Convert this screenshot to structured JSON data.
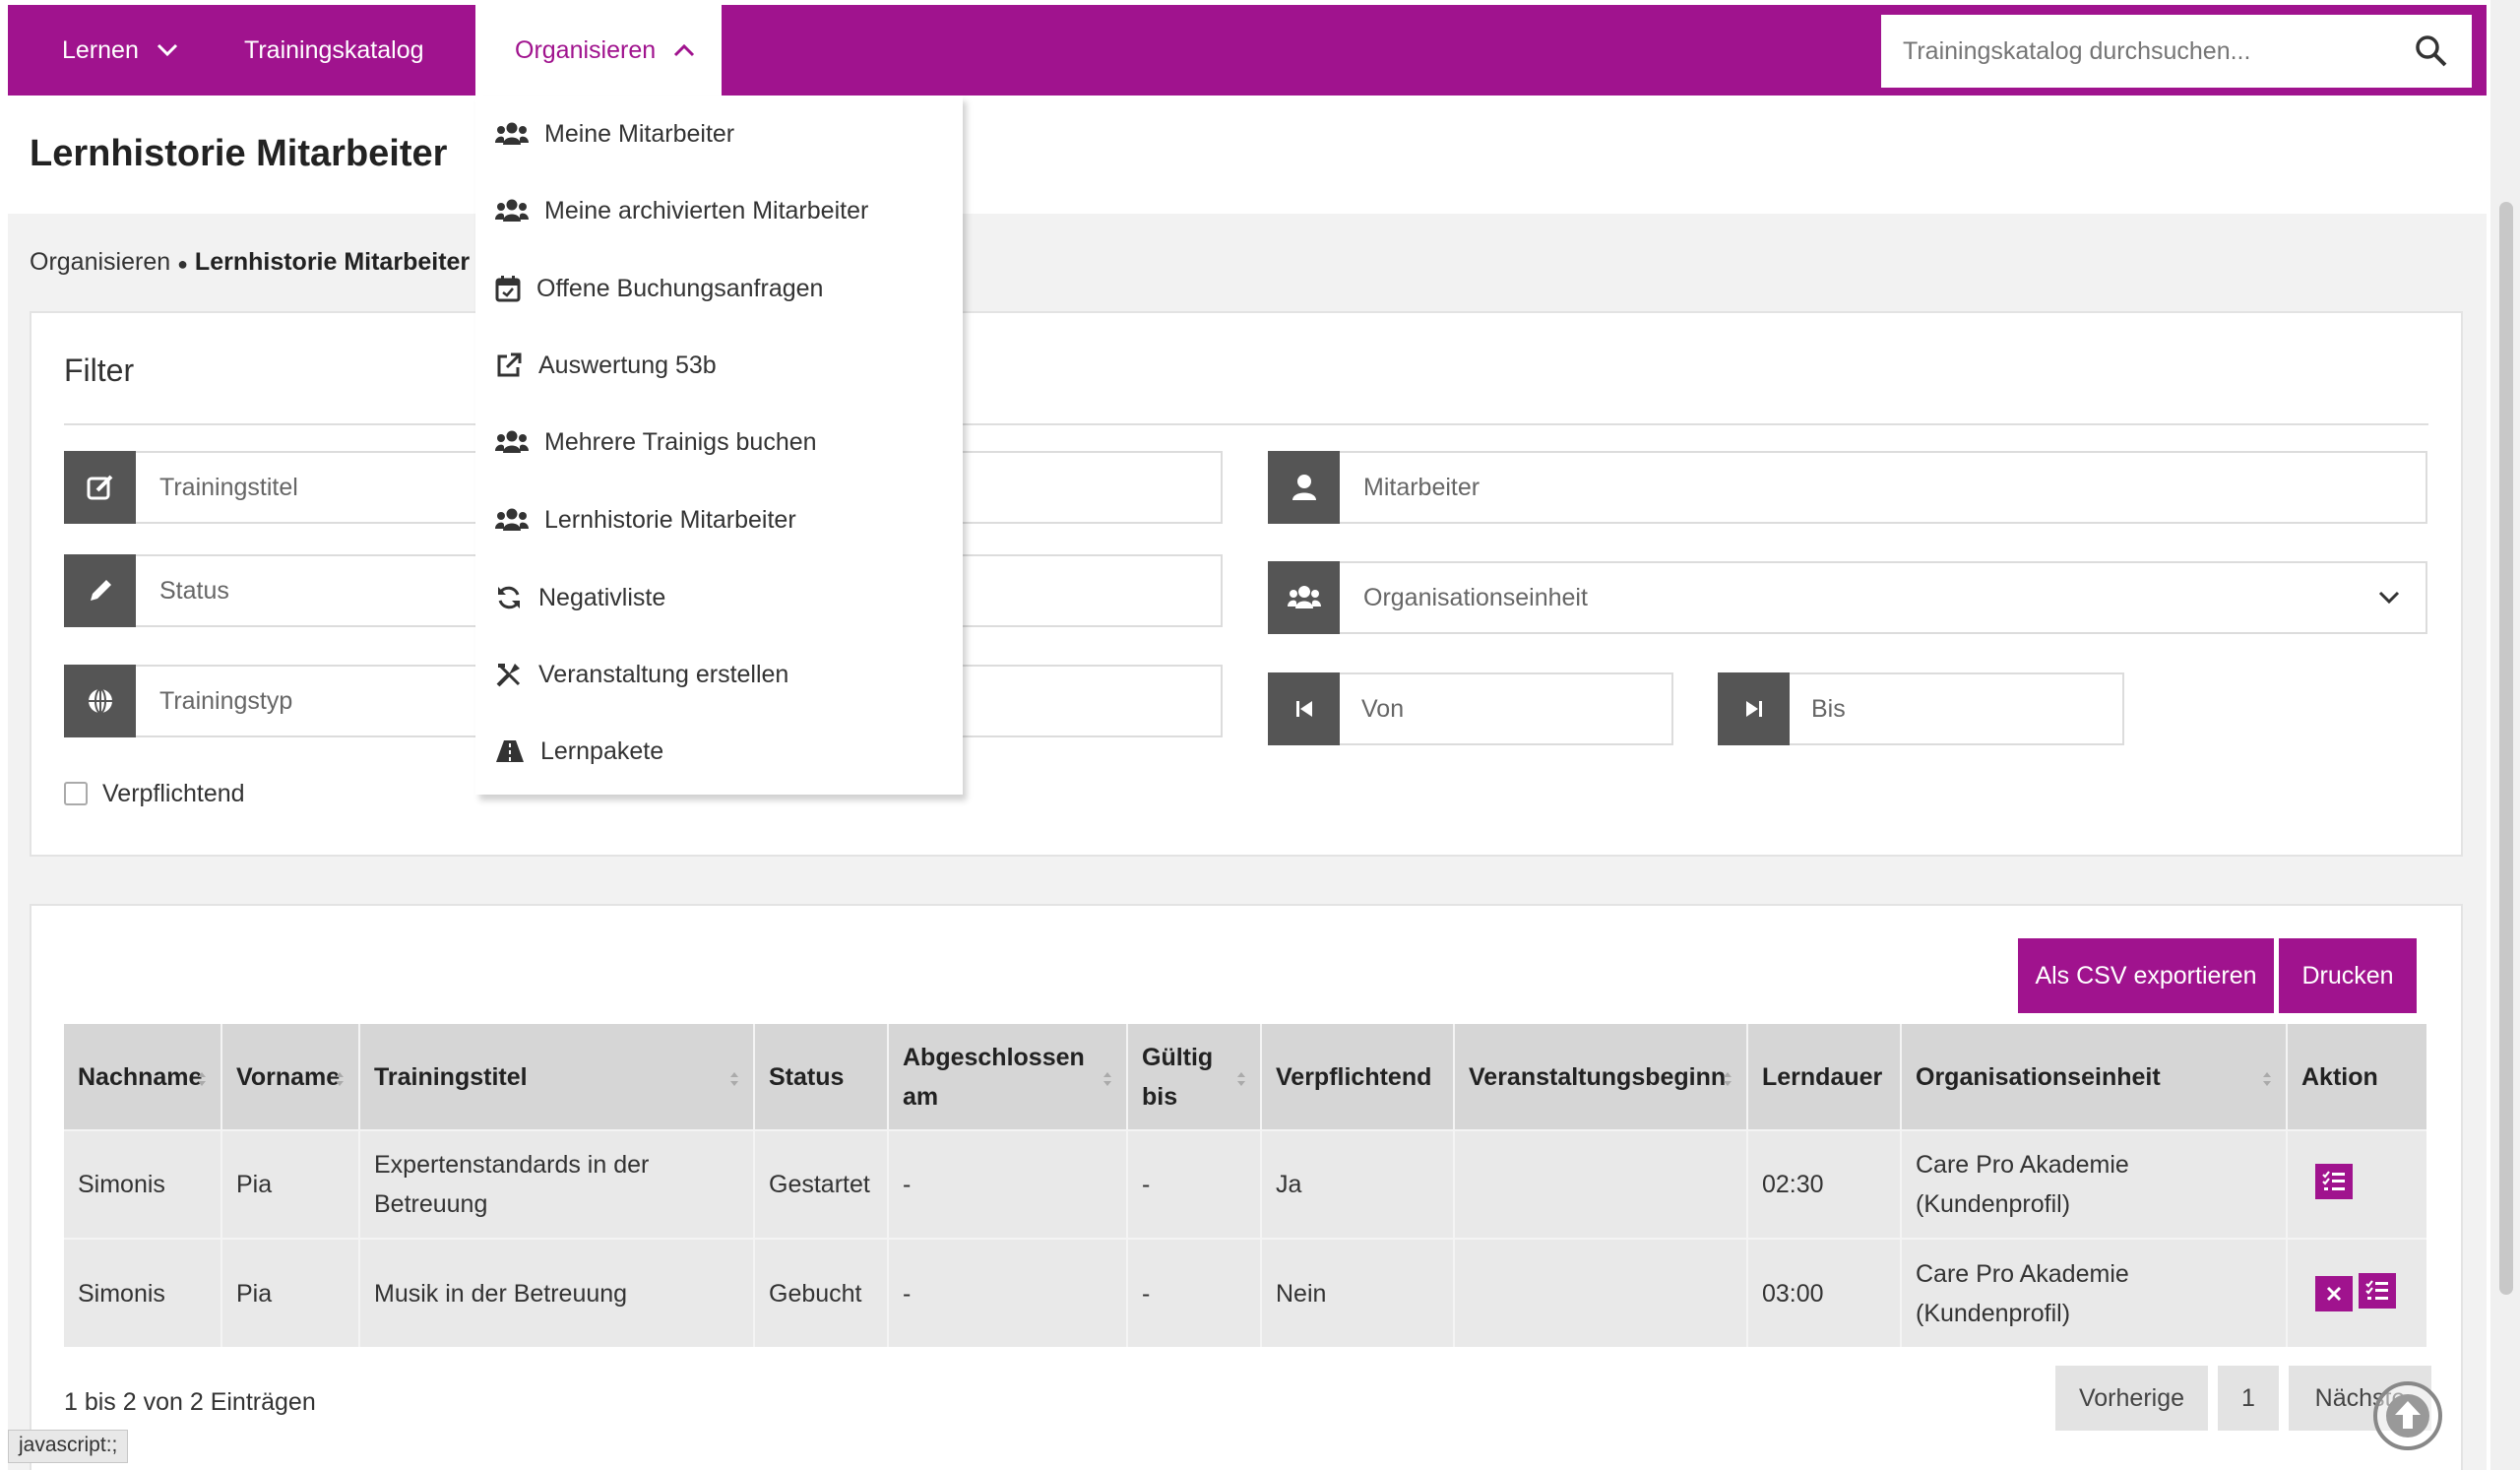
{
  "nav": {
    "lernen": "Lernen",
    "trainingskatalog": "Trainingskatalog",
    "organisieren": "Organisieren",
    "search_placeholder": "Trainingskatalog durchsuchen..."
  },
  "page": {
    "title": "Lernhistorie Mitarbeiter",
    "breadcrumb_root": "Organisieren",
    "breadcrumb_sep": "●",
    "breadcrumb_current": "Lernhistorie Mitarbeiter"
  },
  "dropdown": [
    {
      "label": "Meine Mitarbeiter",
      "icon": "users-icon"
    },
    {
      "label": "Meine archivierten Mitarbeiter",
      "icon": "users-icon"
    },
    {
      "label": "Offene Buchungsanfragen",
      "icon": "calendar-check-icon"
    },
    {
      "label": "Auswertung 53b",
      "icon": "external-link-icon"
    },
    {
      "label": "Mehrere Trainigs buchen",
      "icon": "users-icon"
    },
    {
      "label": "Lernhistorie Mitarbeiter",
      "icon": "users-icon"
    },
    {
      "label": "Negativliste",
      "icon": "refresh-icon"
    },
    {
      "label": "Veranstaltung erstellen",
      "icon": "tools-icon"
    },
    {
      "label": "Lernpakete",
      "icon": "road-icon"
    }
  ],
  "filter": {
    "title": "Filter",
    "trainingstitel": "Trainingstitel",
    "status": "Status",
    "trainingstyp": "Trainingstyp",
    "mitarbeiter": "Mitarbeiter",
    "organisationseinheit": "Organisationseinheit",
    "von": "Von",
    "bis": "Bis",
    "verpflichtend": "Verpflichtend"
  },
  "buttons": {
    "csv": "Als CSV exportieren",
    "print": "Drucken"
  },
  "table": {
    "headers": {
      "nachname": "Nachname",
      "vorname": "Vorname",
      "trainingstitel": "Trainingstitel",
      "status": "Status",
      "abgeschlossen": "Abgeschlossen am",
      "gueltig_1": "Gültig",
      "gueltig_2": "bis",
      "verpflichtend": "Verpflichtend",
      "veranstaltungsbeginn": "Veranstaltungsbeginn",
      "lerndauer": "Lerndauer",
      "organisationseinheit": "Organisationseinheit",
      "aktion": "Aktion"
    },
    "rows": [
      {
        "nachname": "Simonis",
        "vorname": "Pia",
        "trainingstitel_1": "Expertenstandards in der",
        "trainingstitel_2": "Betreuung",
        "status": "Gestartet",
        "abgeschlossen": "-",
        "gueltig": "-",
        "verpflichtend": "Ja",
        "veranstaltungsbeginn": "",
        "lerndauer": "02:30",
        "org_1": "Care Pro Akademie",
        "org_2": "(Kundenprofil)"
      },
      {
        "nachname": "Simonis",
        "vorname": "Pia",
        "trainingstitel_1": "Musik in der Betreuung",
        "trainingstitel_2": "",
        "status": "Gebucht",
        "abgeschlossen": "-",
        "gueltig": "-",
        "verpflichtend": "Nein",
        "veranstaltungsbeginn": "",
        "lerndauer": "03:00",
        "org_1": "Care Pro Akademie",
        "org_2": "(Kundenprofil)"
      }
    ],
    "entries_info": "1 bis 2 von 2 Einträgen"
  },
  "pagination": {
    "prev": "Vorherige",
    "page": "1",
    "next": "Nächste"
  },
  "statusbar": "javascript:;",
  "colors": {
    "brand": "#a0138e",
    "icon_box": "#555555",
    "header_bg": "#d6d6d6"
  }
}
